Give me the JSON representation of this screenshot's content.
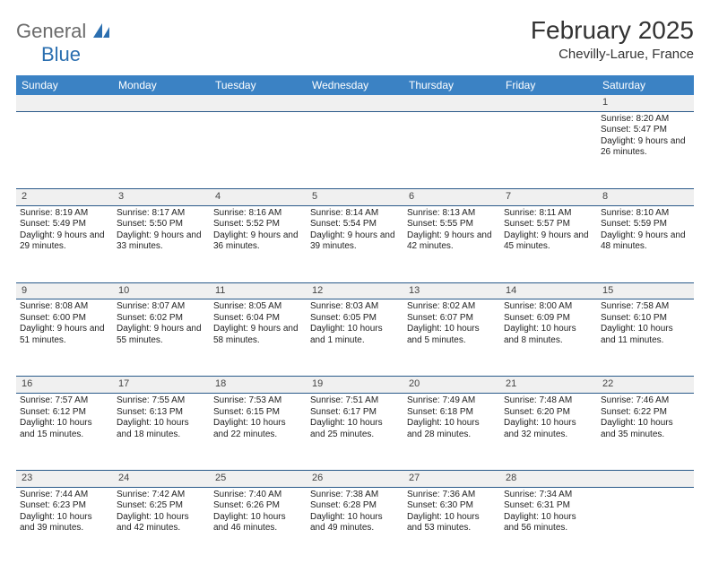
{
  "brand": {
    "part1": "General",
    "part2": "Blue"
  },
  "title": "February 2025",
  "location": "Chevilly-Larue, France",
  "colors": {
    "header_blue": "#3b82c4",
    "row_divider": "#2a5a8a",
    "alt_bg": "#f0f0f0",
    "logo_gray": "#6b6b6b",
    "logo_blue": "#2b6fb0"
  },
  "day_headers": [
    "Sunday",
    "Monday",
    "Tuesday",
    "Wednesday",
    "Thursday",
    "Friday",
    "Saturday"
  ],
  "weeks": [
    [
      null,
      null,
      null,
      null,
      null,
      null,
      {
        "n": "1",
        "sr": "8:20 AM",
        "ss": "5:47 PM",
        "dl": "9 hours and 26 minutes."
      }
    ],
    [
      {
        "n": "2",
        "sr": "8:19 AM",
        "ss": "5:49 PM",
        "dl": "9 hours and 29 minutes."
      },
      {
        "n": "3",
        "sr": "8:17 AM",
        "ss": "5:50 PM",
        "dl": "9 hours and 33 minutes."
      },
      {
        "n": "4",
        "sr": "8:16 AM",
        "ss": "5:52 PM",
        "dl": "9 hours and 36 minutes."
      },
      {
        "n": "5",
        "sr": "8:14 AM",
        "ss": "5:54 PM",
        "dl": "9 hours and 39 minutes."
      },
      {
        "n": "6",
        "sr": "8:13 AM",
        "ss": "5:55 PM",
        "dl": "9 hours and 42 minutes."
      },
      {
        "n": "7",
        "sr": "8:11 AM",
        "ss": "5:57 PM",
        "dl": "9 hours and 45 minutes."
      },
      {
        "n": "8",
        "sr": "8:10 AM",
        "ss": "5:59 PM",
        "dl": "9 hours and 48 minutes."
      }
    ],
    [
      {
        "n": "9",
        "sr": "8:08 AM",
        "ss": "6:00 PM",
        "dl": "9 hours and 51 minutes."
      },
      {
        "n": "10",
        "sr": "8:07 AM",
        "ss": "6:02 PM",
        "dl": "9 hours and 55 minutes."
      },
      {
        "n": "11",
        "sr": "8:05 AM",
        "ss": "6:04 PM",
        "dl": "9 hours and 58 minutes."
      },
      {
        "n": "12",
        "sr": "8:03 AM",
        "ss": "6:05 PM",
        "dl": "10 hours and 1 minute."
      },
      {
        "n": "13",
        "sr": "8:02 AM",
        "ss": "6:07 PM",
        "dl": "10 hours and 5 minutes."
      },
      {
        "n": "14",
        "sr": "8:00 AM",
        "ss": "6:09 PM",
        "dl": "10 hours and 8 minutes."
      },
      {
        "n": "15",
        "sr": "7:58 AM",
        "ss": "6:10 PM",
        "dl": "10 hours and 11 minutes."
      }
    ],
    [
      {
        "n": "16",
        "sr": "7:57 AM",
        "ss": "6:12 PM",
        "dl": "10 hours and 15 minutes."
      },
      {
        "n": "17",
        "sr": "7:55 AM",
        "ss": "6:13 PM",
        "dl": "10 hours and 18 minutes."
      },
      {
        "n": "18",
        "sr": "7:53 AM",
        "ss": "6:15 PM",
        "dl": "10 hours and 22 minutes."
      },
      {
        "n": "19",
        "sr": "7:51 AM",
        "ss": "6:17 PM",
        "dl": "10 hours and 25 minutes."
      },
      {
        "n": "20",
        "sr": "7:49 AM",
        "ss": "6:18 PM",
        "dl": "10 hours and 28 minutes."
      },
      {
        "n": "21",
        "sr": "7:48 AM",
        "ss": "6:20 PM",
        "dl": "10 hours and 32 minutes."
      },
      {
        "n": "22",
        "sr": "7:46 AM",
        "ss": "6:22 PM",
        "dl": "10 hours and 35 minutes."
      }
    ],
    [
      {
        "n": "23",
        "sr": "7:44 AM",
        "ss": "6:23 PM",
        "dl": "10 hours and 39 minutes."
      },
      {
        "n": "24",
        "sr": "7:42 AM",
        "ss": "6:25 PM",
        "dl": "10 hours and 42 minutes."
      },
      {
        "n": "25",
        "sr": "7:40 AM",
        "ss": "6:26 PM",
        "dl": "10 hours and 46 minutes."
      },
      {
        "n": "26",
        "sr": "7:38 AM",
        "ss": "6:28 PM",
        "dl": "10 hours and 49 minutes."
      },
      {
        "n": "27",
        "sr": "7:36 AM",
        "ss": "6:30 PM",
        "dl": "10 hours and 53 minutes."
      },
      {
        "n": "28",
        "sr": "7:34 AM",
        "ss": "6:31 PM",
        "dl": "10 hours and 56 minutes."
      },
      null
    ]
  ],
  "labels": {
    "sunrise": "Sunrise:",
    "sunset": "Sunset:",
    "daylight": "Daylight:"
  }
}
